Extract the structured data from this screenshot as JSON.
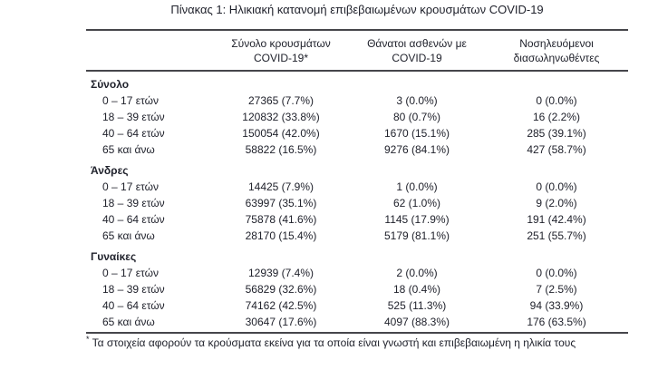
{
  "title": "Πίνακας 1: Ηλικιακή κατανομή επιβεβαιωμένων κρουσμάτων COVID-19",
  "table": {
    "columns": [
      {
        "line1": "Σύνολο κρουσμάτων",
        "line2": "COVID-19*"
      },
      {
        "line1": "Θάνατοι ασθενών με",
        "line2": "COVID-19"
      },
      {
        "line1": "Νοσηλευόμενοι",
        "line2": "διασωληνωθέντες"
      }
    ],
    "sections": [
      {
        "label": "Σύνολο",
        "rows": [
          {
            "age": "0 – 17 ετών",
            "cases": "27365 (7.7%)",
            "deaths": "3 (0.0%)",
            "intubated": "0 (0.0%)"
          },
          {
            "age": "18 – 39 ετών",
            "cases": "120832 (33.8%)",
            "deaths": "80 (0.7%)",
            "intubated": "16 (2.2%)"
          },
          {
            "age": "40 – 64 ετών",
            "cases": "150054 (42.0%)",
            "deaths": "1670 (15.1%)",
            "intubated": "285 (39.1%)"
          },
          {
            "age": "65 και άνω",
            "cases": "58822 (16.5%)",
            "deaths": "9276 (84.1%)",
            "intubated": "427 (58.7%)"
          }
        ]
      },
      {
        "label": "Άνδρες",
        "rows": [
          {
            "age": "0 – 17 ετών",
            "cases": "14425 (7.9%)",
            "deaths": "1 (0.0%)",
            "intubated": "0 (0.0%)"
          },
          {
            "age": "18 – 39 ετών",
            "cases": "63997 (35.1%)",
            "deaths": "62 (1.0%)",
            "intubated": "9 (2.0%)"
          },
          {
            "age": "40 – 64 ετών",
            "cases": "75878 (41.6%)",
            "deaths": "1145 (17.9%)",
            "intubated": "191 (42.4%)"
          },
          {
            "age": "65 και άνω",
            "cases": "28170 (15.4%)",
            "deaths": "5179 (81.1%)",
            "intubated": "251 (55.7%)"
          }
        ]
      },
      {
        "label": "Γυναίκες",
        "rows": [
          {
            "age": "0 – 17 ετών",
            "cases": "12939 (7.4%)",
            "deaths": "2 (0.0%)",
            "intubated": "0 (0.0%)"
          },
          {
            "age": "18 – 39 ετών",
            "cases": "56829 (32.6%)",
            "deaths": "18 (0.4%)",
            "intubated": "7 (2.5%)"
          },
          {
            "age": "40 – 64 ετών",
            "cases": "74162 (42.5%)",
            "deaths": "525 (11.3%)",
            "intubated": "94 (33.9%)"
          },
          {
            "age": "65 και άνω",
            "cases": "30647 (17.6%)",
            "deaths": "4097 (88.3%)",
            "intubated": "176 (63.5%)"
          }
        ]
      }
    ]
  },
  "footnote": {
    "marker": "*",
    "text": "Τα στοιχεία αφορούν τα κρούσματα εκείνα για τα οποία είναι γνωστή και επιβεβαιωμένη η ηλικία τους"
  }
}
